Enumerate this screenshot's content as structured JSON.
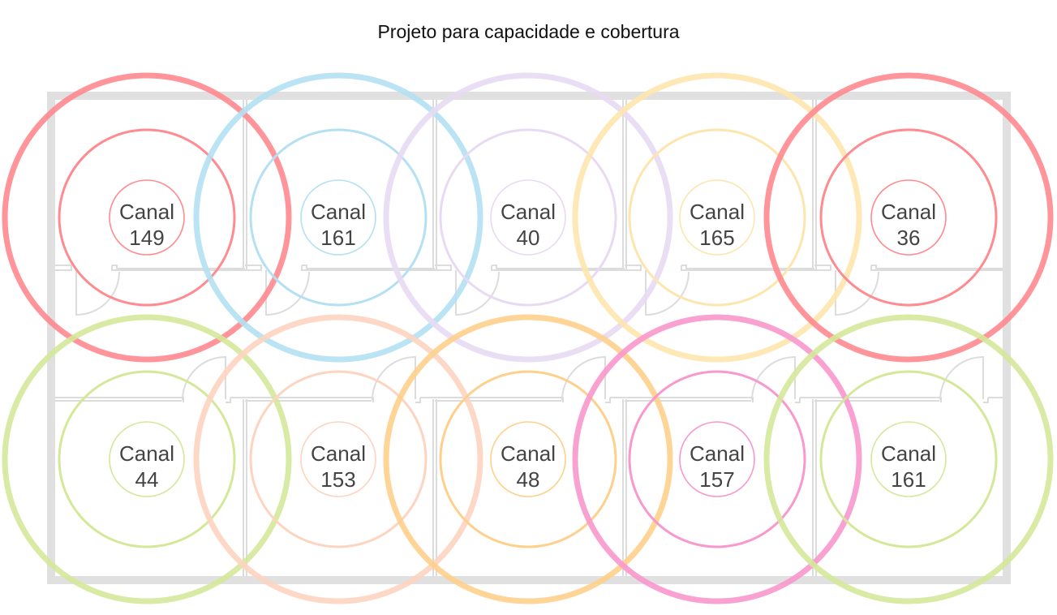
{
  "title": "Projeto para capacidade e cobertura",
  "label_prefix": "Canal",
  "colors": {
    "wall": "#e0e0e0",
    "inner_wall": "#dcdcdc",
    "text": "#444444"
  },
  "access_points": [
    {
      "row": 0,
      "col": 0,
      "channel": "149",
      "color": "#ff8a8f"
    },
    {
      "row": 0,
      "col": 1,
      "channel": "161",
      "color": "#b3e0f2"
    },
    {
      "row": 0,
      "col": 2,
      "channel": "40",
      "color": "#e8daf3"
    },
    {
      "row": 0,
      "col": 3,
      "channel": "165",
      "color": "#fde5ae"
    },
    {
      "row": 0,
      "col": 4,
      "channel": "36",
      "color": "#ff8a8f"
    },
    {
      "row": 1,
      "col": 0,
      "channel": "44",
      "color": "#d4e899"
    },
    {
      "row": 1,
      "col": 1,
      "channel": "153",
      "color": "#fdd4c0"
    },
    {
      "row": 1,
      "col": 2,
      "channel": "48",
      "color": "#fed08c"
    },
    {
      "row": 1,
      "col": 3,
      "channel": "157",
      "color": "#f898cd"
    },
    {
      "row": 1,
      "col": 4,
      "channel": "161",
      "color": "#d4e899"
    }
  ]
}
